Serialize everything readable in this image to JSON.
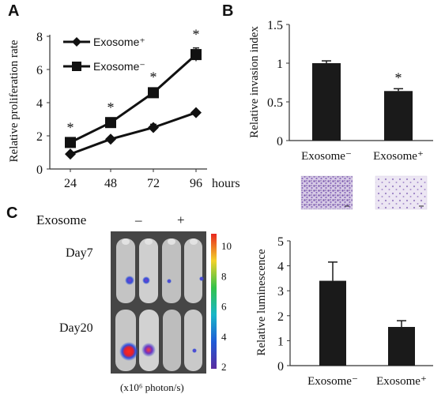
{
  "figure": {
    "panels": {
      "A": "A",
      "B": "B",
      "C": "C"
    }
  },
  "chart_data": [
    {
      "type": "line",
      "panel": "A",
      "ylabel": "Relative proliferation rate",
      "x_unit": "hours",
      "x": [
        24,
        48,
        72,
        96
      ],
      "ylim": [
        0,
        8
      ],
      "y_ticks": [
        0,
        2,
        4,
        6,
        8
      ],
      "series": [
        {
          "name": "Exosome⁺",
          "marker": "diamond",
          "values": [
            0.9,
            1.8,
            2.5,
            3.4
          ],
          "errors": [
            0.05,
            0.1,
            0.2,
            0.1
          ]
        },
        {
          "name": "Exosome⁻",
          "marker": "square",
          "values": [
            1.6,
            2.8,
            4.6,
            6.9
          ],
          "errors": [
            0.1,
            0.1,
            0.15,
            0.4
          ]
        }
      ],
      "significance": [
        "*",
        "*",
        "*",
        "*"
      ]
    },
    {
      "type": "bar",
      "panel": "B",
      "ylabel": "Relative invasion index",
      "categories": [
        "Exosome⁻",
        "Exosome⁺"
      ],
      "values": [
        1.0,
        0.64
      ],
      "errors": [
        0.03,
        0.03
      ],
      "ylim": [
        0,
        1.5
      ],
      "y_ticks": [
        0,
        0.5,
        1,
        1.5
      ],
      "significance": [
        "",
        "*"
      ]
    },
    {
      "type": "bar",
      "panel": "C",
      "ylabel": "Relative luminescence",
      "categories": [
        "Exosome⁻",
        "Exosome⁺"
      ],
      "values": [
        3.4,
        1.55
      ],
      "errors": [
        0.75,
        0.25
      ],
      "ylim": [
        0,
        5
      ],
      "y_ticks": [
        0,
        1,
        2,
        3,
        4,
        5
      ]
    }
  ],
  "imaging": {
    "header": "Exosome",
    "minus": "–",
    "plus": "+",
    "day7": "Day7",
    "day20": "Day20",
    "scale_ticks": [
      10,
      8,
      6,
      4,
      2
    ],
    "scale_unit": "(x10⁶ photon/s)"
  },
  "colors": {
    "bar": "#1a1a1a",
    "line": "#111111",
    "axis": "#333333",
    "cells": "#8a6bb8"
  }
}
